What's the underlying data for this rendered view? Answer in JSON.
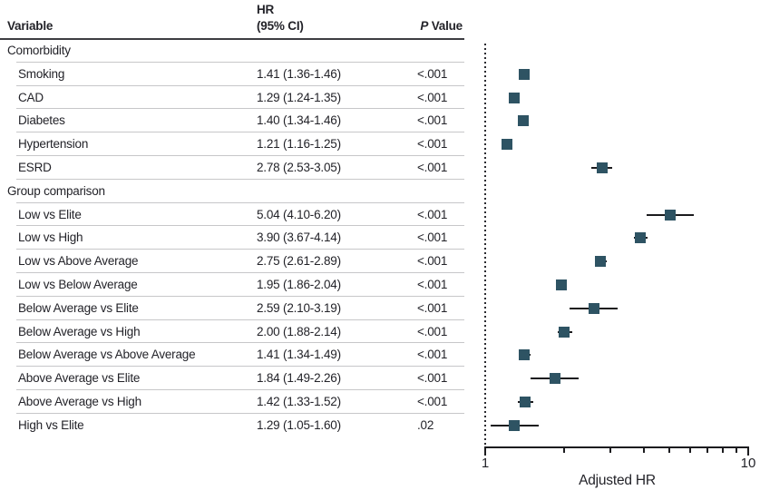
{
  "table": {
    "header": {
      "variable": "Variable",
      "hr_line1": "HR",
      "hr_line2": "(95% CI)",
      "p_italic": "P",
      "p_rest": " Value"
    }
  },
  "chart_data": {
    "type": "scatter",
    "variant": "forest-plot",
    "xlabel": "Adjusted HR",
    "x_scale": "log",
    "xlim": [
      1,
      10
    ],
    "x_ticks": [
      1,
      2,
      3,
      4,
      5,
      6,
      7,
      8,
      9,
      10
    ],
    "x_tick_labels_shown": [
      "1",
      "10"
    ],
    "reference_line_x": 1,
    "marker_color": "#2E5363",
    "groups": [
      {
        "label": "Comorbidity",
        "items": [
          {
            "label": "Smoking",
            "hr": 1.41,
            "ci_low": 1.36,
            "ci_high": 1.46,
            "hr_text": "1.41 (1.36-1.46)",
            "p_value": "<.001"
          },
          {
            "label": "CAD",
            "hr": 1.29,
            "ci_low": 1.24,
            "ci_high": 1.35,
            "hr_text": "1.29 (1.24-1.35)",
            "p_value": "<.001"
          },
          {
            "label": "Diabetes",
            "hr": 1.4,
            "ci_low": 1.34,
            "ci_high": 1.46,
            "hr_text": "1.40 (1.34-1.46)",
            "p_value": "<.001"
          },
          {
            "label": "Hypertension",
            "hr": 1.21,
            "ci_low": 1.16,
            "ci_high": 1.25,
            "hr_text": "1.21 (1.16-1.25)",
            "p_value": "<.001"
          },
          {
            "label": "ESRD",
            "hr": 2.78,
            "ci_low": 2.53,
            "ci_high": 3.05,
            "hr_text": "2.78 (2.53-3.05)",
            "p_value": "<.001"
          }
        ]
      },
      {
        "label": "Group comparison",
        "items": [
          {
            "label": "Low vs Elite",
            "hr": 5.04,
            "ci_low": 4.1,
            "ci_high": 6.2,
            "hr_text": "5.04 (4.10-6.20)",
            "p_value": "<.001"
          },
          {
            "label": "Low vs High",
            "hr": 3.9,
            "ci_low": 3.67,
            "ci_high": 4.14,
            "hr_text": "3.90 (3.67-4.14)",
            "p_value": "<.001"
          },
          {
            "label": "Low vs Above Average",
            "hr": 2.75,
            "ci_low": 2.61,
            "ci_high": 2.89,
            "hr_text": "2.75 (2.61-2.89)",
            "p_value": "<.001"
          },
          {
            "label": "Low vs Below Average",
            "hr": 1.95,
            "ci_low": 1.86,
            "ci_high": 2.04,
            "hr_text": "1.95 (1.86-2.04)",
            "p_value": "<.001"
          },
          {
            "label": "Below Average vs Elite",
            "hr": 2.59,
            "ci_low": 2.1,
            "ci_high": 3.19,
            "hr_text": "2.59 (2.10-3.19)",
            "p_value": "<.001"
          },
          {
            "label": "Below Average vs High",
            "hr": 2.0,
            "ci_low": 1.88,
            "ci_high": 2.14,
            "hr_text": "2.00 (1.88-2.14)",
            "p_value": "<.001"
          },
          {
            "label": "Below Average vs Above Average",
            "hr": 1.41,
            "ci_low": 1.34,
            "ci_high": 1.49,
            "hr_text": "1.41 (1.34-1.49)",
            "p_value": "<.001"
          },
          {
            "label": "Above Average vs Elite",
            "hr": 1.84,
            "ci_low": 1.49,
            "ci_high": 2.26,
            "hr_text": "1.84 (1.49-2.26)",
            "p_value": "<.001"
          },
          {
            "label": "Above Average vs High",
            "hr": 1.42,
            "ci_low": 1.33,
            "ci_high": 1.52,
            "hr_text": "1.42 (1.33-1.52)",
            "p_value": "<.001"
          },
          {
            "label": "High vs Elite",
            "hr": 1.29,
            "ci_low": 1.05,
            "ci_high": 1.6,
            "hr_text": "1.29 (1.05-1.60)",
            "p_value": ".02"
          }
        ]
      }
    ]
  }
}
